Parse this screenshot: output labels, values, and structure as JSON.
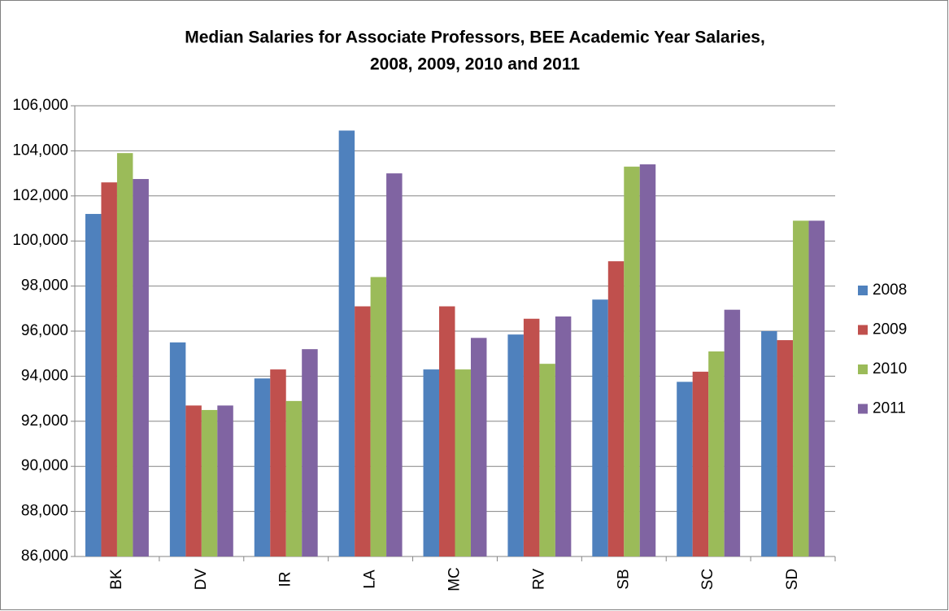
{
  "chart_data": {
    "type": "bar",
    "title": "Median Salaries for Associate Professors, BEE Academic Year Salaries,",
    "subtitle": "2008, 2009, 2010 and 2011",
    "categories": [
      "BK",
      "DV",
      "IR",
      "LA",
      "MC",
      "RV",
      "SB",
      "SC",
      "SD"
    ],
    "series": [
      {
        "name": "2008",
        "color": "#4f81bd",
        "values": [
          101200,
          95500,
          93900,
          104900,
          94300,
          95850,
          97400,
          93750,
          96000
        ]
      },
      {
        "name": "2009",
        "color": "#c0504d",
        "values": [
          102600,
          92700,
          94300,
          97100,
          97100,
          96550,
          99100,
          94200,
          95600
        ]
      },
      {
        "name": "2010",
        "color": "#9bbb59",
        "values": [
          103900,
          92500,
          92900,
          98400,
          94300,
          94550,
          103300,
          95100,
          100900
        ]
      },
      {
        "name": "2011",
        "color": "#8064a2",
        "values": [
          102750,
          92700,
          95200,
          103000,
          95700,
          96650,
          103400,
          96950,
          100900
        ]
      }
    ],
    "ylim": [
      86000,
      106000
    ],
    "yticks": [
      {
        "value": 86000,
        "label": "86,000"
      },
      {
        "value": 88000,
        "label": "88,000"
      },
      {
        "value": 90000,
        "label": "90,000"
      },
      {
        "value": 92000,
        "label": "92,000"
      },
      {
        "value": 94000,
        "label": "94,000"
      },
      {
        "value": 96000,
        "label": "96,000"
      },
      {
        "value": 98000,
        "label": "98,000"
      },
      {
        "value": 100000,
        "label": "100,000"
      },
      {
        "value": 102000,
        "label": "102,000"
      },
      {
        "value": 104000,
        "label": "104,000"
      },
      {
        "value": 106000,
        "label": "106,000"
      }
    ],
    "grid": true,
    "legend": "right"
  }
}
